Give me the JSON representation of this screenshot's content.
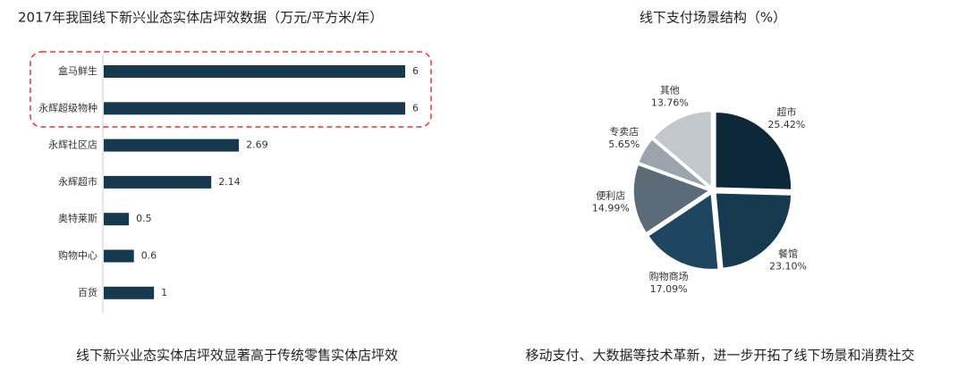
{
  "chart_data": [
    {
      "type": "bar",
      "title": "2017年我国线下新兴业态实体店坪效数据（万元/平方米/年）",
      "categories": [
        "盒马鲜生",
        "永辉超级物种",
        "永辉社区店",
        "永辉超市",
        "奥特莱斯",
        "购物中心",
        "百货"
      ],
      "values": [
        6,
        6,
        2.69,
        2.14,
        0.5,
        0.6,
        1
      ],
      "color": "#16394f",
      "caption": "线下新兴业态实体店坪效显著高于传统零售实体店坪效"
    },
    {
      "type": "pie",
      "title": "线下支付场景结构（%）",
      "categories": [
        "超市",
        "餐馆",
        "购物商场",
        "便利店",
        "专卖店",
        "其他"
      ],
      "values": [
        25.42,
        23.1,
        17.09,
        14.99,
        5.65,
        13.76
      ],
      "value_labels": [
        "25.42%",
        "23.10%",
        "17.09%",
        "14.99%",
        "5.65%",
        "13.76%"
      ],
      "colors": [
        "#0d2838",
        "#163a4f",
        "#1f4660",
        "#5c6b78",
        "#9ba4ac",
        "#c2c7cc"
      ],
      "caption": "移动支付、大数据等技术革新，进一步开拓了线下场景和消费社交"
    }
  ]
}
